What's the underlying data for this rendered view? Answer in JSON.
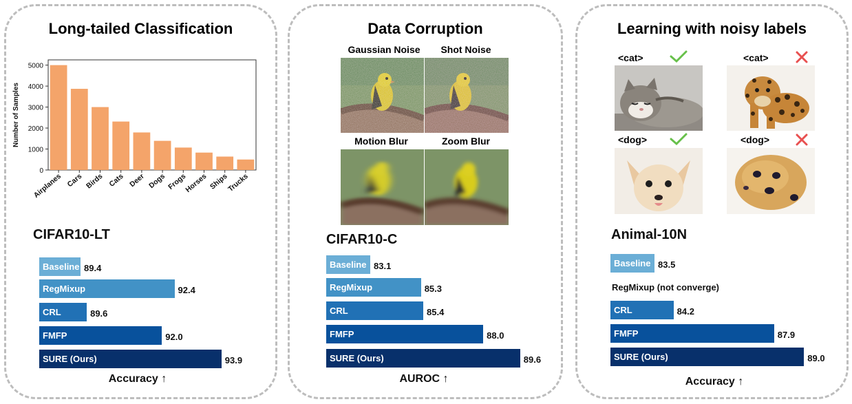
{
  "panels": [
    {
      "title": "Long-tailed Classification"
    },
    {
      "title": "Data Corruption"
    },
    {
      "title": "Learning with noisy labels"
    }
  ],
  "chart_data": [
    {
      "type": "bar",
      "ylabel": "Number of Samples",
      "xlabel": "",
      "categories": [
        "Airplanes",
        "Cars",
        "Birds",
        "Cats",
        "Deer",
        "Dogs",
        "Frogs",
        "Horses",
        "Ships",
        "Trucks"
      ],
      "values": [
        5000,
        3870,
        3000,
        2310,
        1790,
        1390,
        1070,
        830,
        640,
        500
      ],
      "ylim": [
        0,
        5250
      ],
      "yticks": [
        "0",
        "1000",
        "2000",
        "3000",
        "4000",
        "5000"
      ],
      "color": "#F4A46A",
      "grid": false
    },
    {
      "type": "bar",
      "orientation": "horizontal",
      "title": "CIFAR10-LT",
      "xlabel": "Accuracy ↑",
      "categories": [
        "Baseline",
        "RegMixup",
        "CRL",
        "FMFP",
        "SURE (Ours)"
      ],
      "values": [
        89.4,
        92.4,
        89.6,
        92.0,
        93.9
      ],
      "labels": [
        "89.4",
        "92.4",
        "89.6",
        "92.0",
        "93.9"
      ],
      "colors": [
        "#6BAED6",
        "#4292C6",
        "#2171B5",
        "#08519C",
        "#08306B"
      ]
    },
    {
      "type": "bar",
      "orientation": "horizontal",
      "title": "CIFAR10-C",
      "xlabel": "AUROC ↑",
      "categories": [
        "Baseline",
        "RegMixup",
        "CRL",
        "FMFP",
        "SURE (Ours)"
      ],
      "values": [
        83.1,
        85.3,
        85.4,
        88.0,
        89.6
      ],
      "labels": [
        "83.1",
        "85.3",
        "85.4",
        "88.0",
        "89.6"
      ],
      "colors": [
        "#6BAED6",
        "#4292C6",
        "#2171B5",
        "#08519C",
        "#08306B"
      ]
    },
    {
      "type": "bar",
      "orientation": "horizontal",
      "title": "Animal-10N",
      "xlabel": "Accuracy ↑",
      "categories": [
        "Baseline",
        "RegMixup",
        "CRL",
        "FMFP",
        "SURE (Ours)"
      ],
      "values": [
        83.5,
        null,
        84.2,
        87.9,
        89.0
      ],
      "labels": [
        "83.5",
        "",
        "84.2",
        "87.9",
        "89.0"
      ],
      "note": "RegMixup (not converge)",
      "colors": [
        "#6BAED6",
        "#4292C6",
        "#2171B5",
        "#08519C",
        "#08306B"
      ]
    }
  ],
  "corruption_images": [
    "Gaussian Noise",
    "Shot Noise",
    "Motion Blur",
    "Zoom Blur"
  ],
  "noisy_images": [
    {
      "tag": "<cat>",
      "mark": "check-icon",
      "subject": "cat"
    },
    {
      "tag": "<cat>",
      "mark": "cross-icon",
      "subject": "leopard"
    },
    {
      "tag": "<dog>",
      "mark": "check-icon",
      "subject": "dog"
    },
    {
      "tag": "<dog>",
      "mark": "cross-icon",
      "subject": "muffin"
    }
  ]
}
